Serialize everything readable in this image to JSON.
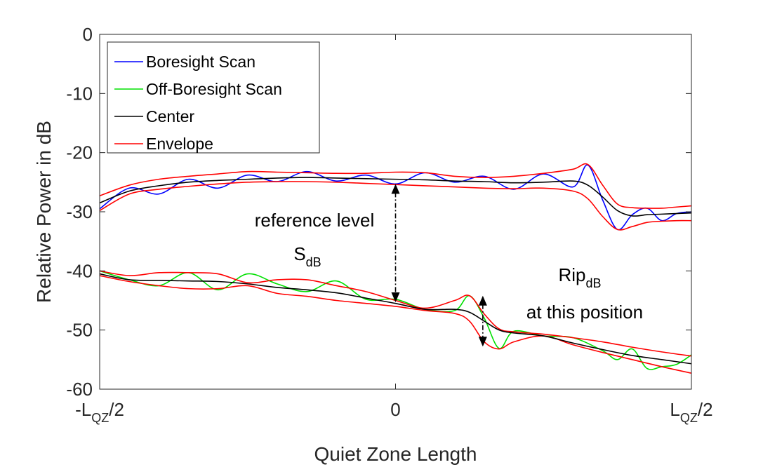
{
  "chart_data": {
    "type": "line",
    "xlabel": "Quiet Zone Length",
    "ylabel": "Relative Power in dB",
    "xlim": [
      -1,
      1
    ],
    "ylim": [
      -60,
      0
    ],
    "yticks": [
      0,
      -10,
      -20,
      -30,
      -40,
      -50,
      -60
    ],
    "yticklabels": [
      "0",
      "-10",
      "-20",
      "-30",
      "-40",
      "-50",
      "-60"
    ],
    "xticks": [
      {
        "value": -1,
        "main": "-L",
        "sub": "QZ",
        "suffix": "/2"
      },
      {
        "value": 0,
        "main": "0",
        "sub": "",
        "suffix": ""
      },
      {
        "value": 1,
        "main": "L",
        "sub": "QZ",
        "suffix": "/2"
      }
    ],
    "grid": false,
    "legend": {
      "position": "top-left",
      "entries": [
        {
          "label": "Boresight Scan",
          "color": "#0000ff"
        },
        {
          "label": "Off-Boresight Scan",
          "color": "#00e000"
        },
        {
          "label": "Center",
          "color": "#000000"
        },
        {
          "label": "Envelope",
          "color": "#ff0000"
        }
      ]
    },
    "series": [
      {
        "name": "Boresight Scan",
        "color": "#0000ff",
        "x": [
          -1.0,
          -0.9,
          -0.8,
          -0.7,
          -0.6,
          -0.5,
          -0.4,
          -0.3,
          -0.2,
          -0.1,
          0.0,
          0.1,
          0.2,
          0.3,
          0.4,
          0.5,
          0.6,
          0.65,
          0.7,
          0.75,
          0.8,
          0.85,
          0.9,
          0.95,
          1.0
        ],
        "y": [
          -29.5,
          -26.0,
          -27.0,
          -24.5,
          -26.0,
          -23.8,
          -24.9,
          -23.2,
          -24.8,
          -23.8,
          -25.3,
          -23.4,
          -25.0,
          -24.0,
          -26.2,
          -23.6,
          -25.8,
          -22.1,
          -28.0,
          -33.0,
          -30.5,
          -29.4,
          -31.5,
          -30.3,
          -30.0
        ]
      },
      {
        "name": "Off-Boresight Scan",
        "color": "#00e000",
        "x": [
          -1.0,
          -0.9,
          -0.8,
          -0.7,
          -0.6,
          -0.5,
          -0.4,
          -0.3,
          -0.2,
          -0.1,
          0.0,
          0.1,
          0.2,
          0.25,
          0.3,
          0.35,
          0.4,
          0.5,
          0.6,
          0.7,
          0.75,
          0.8,
          0.85,
          0.9,
          0.95,
          1.0
        ],
        "y": [
          -40.0,
          -41.5,
          -42.5,
          -40.3,
          -43.2,
          -40.5,
          -42.2,
          -43.5,
          -41.7,
          -44.8,
          -44.8,
          -46.5,
          -46.7,
          -44.2,
          -48.0,
          -53.1,
          -50.2,
          -51.0,
          -51.3,
          -53.5,
          -55.0,
          -53.2,
          -56.5,
          -56.2,
          -55.8,
          -54.2
        ]
      },
      {
        "name": "Center",
        "color": "#000000",
        "x": [
          -1.0,
          -0.9,
          -0.8,
          -0.7,
          -0.6,
          -0.5,
          -0.4,
          -0.3,
          -0.2,
          -0.1,
          0.0,
          0.1,
          0.2,
          0.3,
          0.4,
          0.5,
          0.6,
          0.65,
          0.7,
          0.75,
          0.8,
          0.85,
          0.9,
          0.95,
          1.0
        ],
        "y": [
          -28.5,
          -26.5,
          -25.6,
          -25.0,
          -24.7,
          -24.5,
          -24.3,
          -24.2,
          -24.3,
          -24.4,
          -24.5,
          -24.6,
          -24.8,
          -24.9,
          -25.1,
          -25.0,
          -24.8,
          -25.5,
          -27.5,
          -29.8,
          -30.7,
          -30.5,
          -30.4,
          -30.3,
          -30.2
        ]
      },
      {
        "name": "Center",
        "color": "#000000",
        "x": [
          -1.0,
          -0.9,
          -0.8,
          -0.7,
          -0.6,
          -0.5,
          -0.4,
          -0.3,
          -0.2,
          -0.1,
          0.0,
          0.1,
          0.2,
          0.25,
          0.3,
          0.35,
          0.4,
          0.5,
          0.6,
          0.7,
          0.8,
          0.9,
          1.0
        ],
        "y": [
          -40.5,
          -41.5,
          -41.6,
          -41.7,
          -41.8,
          -42.2,
          -42.8,
          -43.2,
          -43.7,
          -44.6,
          -45.5,
          -46.5,
          -46.5,
          -47.0,
          -48.5,
          -50.0,
          -50.5,
          -51.0,
          -52.2,
          -53.3,
          -54.3,
          -55.0,
          -55.7
        ]
      },
      {
        "name": "Envelope",
        "color": "#ff0000",
        "x": [
          -1.0,
          -0.9,
          -0.8,
          -0.7,
          -0.6,
          -0.5,
          -0.4,
          -0.3,
          -0.2,
          -0.1,
          0.0,
          0.1,
          0.2,
          0.3,
          0.4,
          0.5,
          0.6,
          0.65,
          0.7,
          0.75,
          0.8,
          0.85,
          0.9,
          0.95,
          1.0
        ],
        "y": [
          -27.3,
          -25.5,
          -24.5,
          -24.0,
          -23.6,
          -23.2,
          -23.3,
          -23.4,
          -23.5,
          -23.5,
          -23.3,
          -23.4,
          -24.0,
          -24.2,
          -24.0,
          -23.5,
          -22.8,
          -22.0,
          -25.5,
          -28.7,
          -29.3,
          -29.4,
          -29.4,
          -29.2,
          -29.0
        ]
      },
      {
        "name": "Envelope",
        "color": "#ff0000",
        "x": [
          -1.0,
          -0.9,
          -0.8,
          -0.7,
          -0.6,
          -0.5,
          -0.4,
          -0.3,
          -0.2,
          -0.1,
          0.0,
          0.1,
          0.2,
          0.3,
          0.4,
          0.5,
          0.6,
          0.65,
          0.7,
          0.75,
          0.8,
          0.85,
          0.9,
          0.95,
          1.0
        ],
        "y": [
          -29.8,
          -27.0,
          -26.2,
          -25.7,
          -25.3,
          -25.0,
          -24.9,
          -24.9,
          -25.0,
          -25.2,
          -25.4,
          -25.6,
          -25.8,
          -26.0,
          -26.1,
          -26.0,
          -26.5,
          -27.8,
          -30.8,
          -33.0,
          -32.5,
          -31.8,
          -31.6,
          -31.5,
          -31.5
        ]
      },
      {
        "name": "Envelope",
        "color": "#ff0000",
        "x": [
          -1.0,
          -0.9,
          -0.8,
          -0.7,
          -0.6,
          -0.5,
          -0.4,
          -0.3,
          -0.2,
          -0.1,
          0.0,
          0.1,
          0.2,
          0.25,
          0.3,
          0.35,
          0.4,
          0.5,
          0.6,
          0.7,
          0.8,
          0.9,
          1.0
        ],
        "y": [
          -40.0,
          -40.8,
          -40.3,
          -40.3,
          -40.5,
          -42.0,
          -41.5,
          -41.5,
          -42.5,
          -43.5,
          -45.0,
          -46.3,
          -45.0,
          -44.2,
          -47.3,
          -49.8,
          -50.3,
          -50.7,
          -51.3,
          -52.0,
          -52.9,
          -53.7,
          -54.4
        ]
      },
      {
        "name": "Envelope",
        "color": "#ff0000",
        "x": [
          -1.0,
          -0.9,
          -0.8,
          -0.7,
          -0.6,
          -0.5,
          -0.4,
          -0.3,
          -0.2,
          -0.1,
          0.0,
          0.1,
          0.2,
          0.25,
          0.3,
          0.35,
          0.4,
          0.5,
          0.6,
          0.7,
          0.8,
          0.9,
          1.0
        ],
        "y": [
          -40.8,
          -41.8,
          -42.5,
          -43.0,
          -43.0,
          -42.5,
          -43.8,
          -44.3,
          -45.0,
          -45.5,
          -46.0,
          -46.7,
          -47.2,
          -48.5,
          -52.0,
          -53.2,
          -52.0,
          -51.0,
          -52.5,
          -53.8,
          -55.0,
          -56.2,
          -57.3
        ]
      }
    ],
    "annotations": [
      {
        "id": "reference",
        "line1": "reference level",
        "main": "S",
        "sub": "dB",
        "arrow": {
          "x": 0.0,
          "y1": -25.3,
          "y2": -45.3
        }
      },
      {
        "id": "ripple",
        "main": "Rip",
        "sub": "dB",
        "line2": "at this position",
        "arrow": {
          "x": 0.295,
          "y1": -44.2,
          "y2": -52.8
        }
      }
    ]
  }
}
